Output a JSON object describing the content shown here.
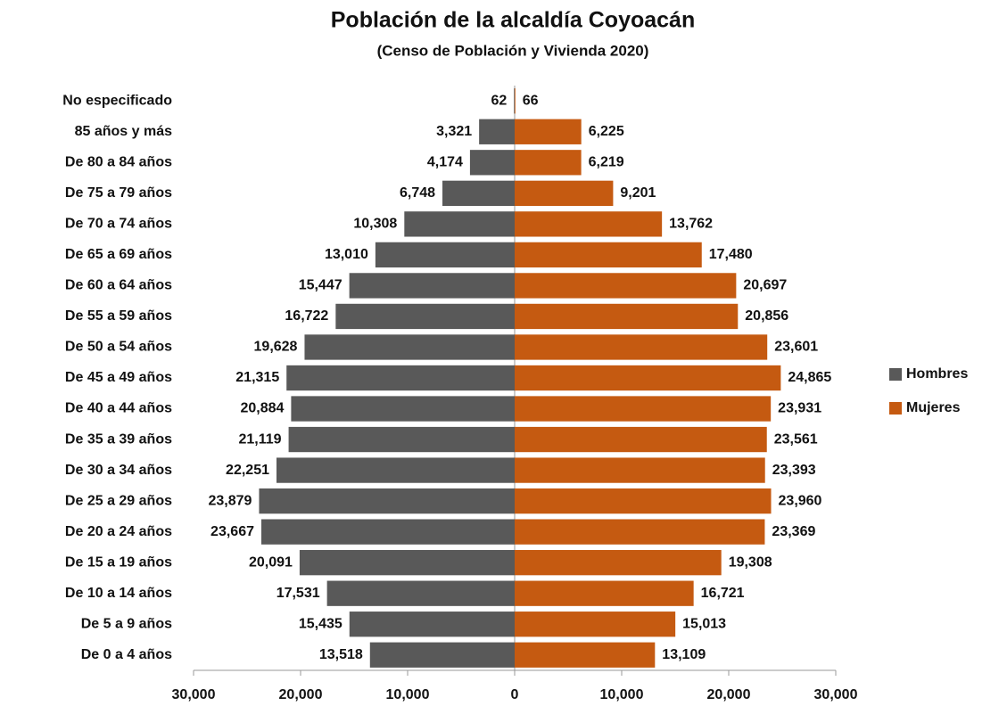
{
  "chart_data": {
    "type": "pyramid",
    "title": "Población de la alcaldía Coyoacán",
    "subtitle": "(Censo de Población y Vivienda 2020)",
    "categories": [
      "No especificado",
      "85 años y más",
      "De 80 a 84 años",
      "De 75 a 79 años",
      "De 70 a 74 años",
      "De 65 a 69 años",
      "De 60 a 64 años",
      "De 55 a 59 años",
      "De 50 a 54 años",
      "De 45 a 49 años",
      "De 40 a 44 años",
      "De 35 a 39 años",
      "De 30 a 34 años",
      "De 25 a 29 años",
      "De 20 a 24 años",
      "De 15 a 19 años",
      "De 10 a 14 años",
      "De 5 a 9 años",
      "De 0 a 4 años"
    ],
    "series": [
      {
        "name": "Hombres",
        "color": "#595959",
        "values": [
          62,
          3321,
          4174,
          6748,
          10308,
          13010,
          15447,
          16722,
          19628,
          21315,
          20884,
          21119,
          22251,
          23879,
          23667,
          20091,
          17531,
          15435,
          13518
        ],
        "value_labels": [
          "62",
          "3,321",
          "4,174",
          "6,748",
          "10,308",
          "13,010",
          "15,447",
          "16,722",
          "19,628",
          "21,315",
          "20,884",
          "21,119",
          "22,251",
          "23,879",
          "23,667",
          "20,091",
          "17,531",
          "15,435",
          "13,518"
        ]
      },
      {
        "name": "Mujeres",
        "color": "#c55a11",
        "values": [
          66,
          6225,
          6219,
          9201,
          13762,
          17480,
          20697,
          20856,
          23601,
          24865,
          23931,
          23561,
          23393,
          23960,
          23369,
          19308,
          16721,
          15013,
          13109
        ],
        "value_labels": [
          "66",
          "6,225",
          "6,219",
          "9,201",
          "13,762",
          "17,480",
          "20,697",
          "20,856",
          "23,601",
          "24,865",
          "23,931",
          "23,561",
          "23,393",
          "23,960",
          "23,369",
          "19,308",
          "16,721",
          "15,013",
          "13,109"
        ]
      }
    ],
    "xlim": [
      -30000,
      30000
    ],
    "xticks": [
      {
        "value": -30000,
        "label": "30,000"
      },
      {
        "value": -20000,
        "label": "20,000"
      },
      {
        "value": -10000,
        "label": "10,000"
      },
      0,
      {
        "value": 10000,
        "label": "10,000"
      },
      {
        "value": 20000,
        "label": "20,000"
      },
      {
        "value": 30000,
        "label": "30,000"
      }
    ],
    "legend": "right"
  }
}
